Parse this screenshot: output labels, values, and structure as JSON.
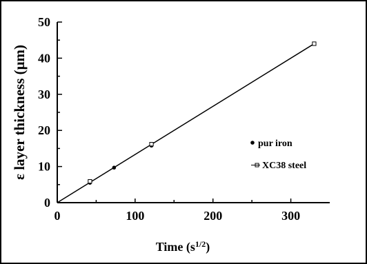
{
  "chart_data": {
    "type": "scatter",
    "xlabel": "Time (s",
    "xlabel_sup": "1/2",
    "xlabel_end": ")",
    "ylabel": "ε layer thickness (μm)",
    "xlim": [
      0,
      350
    ],
    "ylim": [
      0,
      50
    ],
    "x_ticks": [
      "0",
      "100",
      "200",
      "300"
    ],
    "y_ticks": [
      "0",
      "10",
      "20",
      "30",
      "40",
      "50"
    ],
    "grid": false,
    "legend_position": "right",
    "series": [
      {
        "name": "pur iron",
        "marker": "filled-circle",
        "points": [
          {
            "x": 42,
            "y": 5.5
          },
          {
            "x": 73,
            "y": 9.7
          },
          {
            "x": 121,
            "y": 15.8
          }
        ]
      },
      {
        "name": "XC38 steel",
        "marker": "open-square",
        "points": [
          {
            "x": 42,
            "y": 5.9
          },
          {
            "x": 121,
            "y": 16.2
          },
          {
            "x": 330,
            "y": 44.0
          }
        ]
      }
    ],
    "fit_line": {
      "x": [
        0,
        330
      ],
      "y": [
        0,
        44.0
      ]
    }
  }
}
